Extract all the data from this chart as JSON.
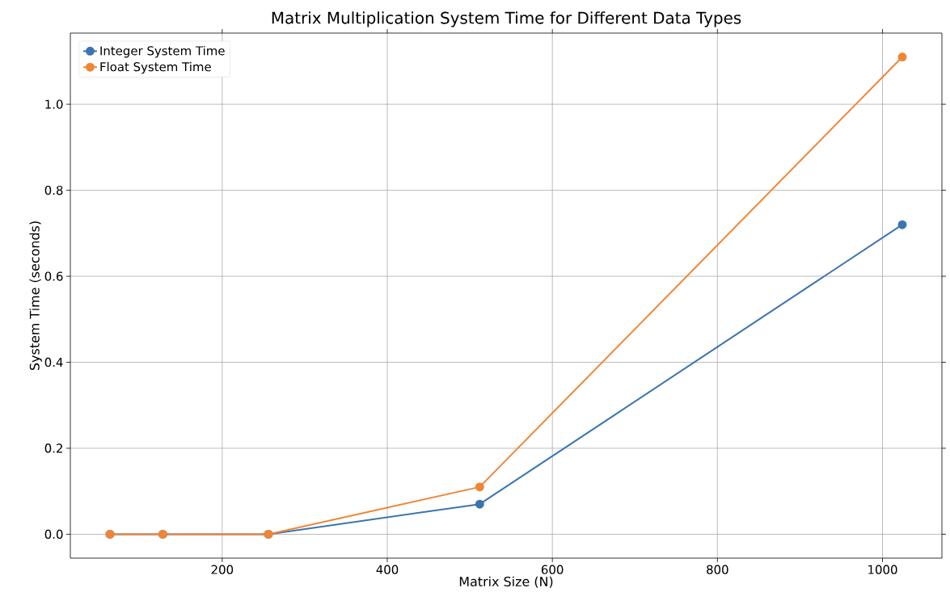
{
  "chart_data": {
    "type": "line",
    "title": "Matrix Multiplication System Time for Different Data Types",
    "xlabel": "Matrix Size (N)",
    "ylabel": "System Time (seconds)",
    "x": [
      64,
      128,
      256,
      512,
      1024
    ],
    "series": [
      {
        "name": "Integer System Time",
        "color": "#3b75af",
        "values": [
          0,
          0,
          0,
          0.07,
          0.72
        ]
      },
      {
        "name": "Float System Time",
        "color": "#ef8636",
        "values": [
          0,
          0,
          0,
          0.11,
          1.11
        ]
      }
    ],
    "xlim": [
      16,
      1072
    ],
    "ylim": [
      -0.0555,
      1.1655
    ],
    "xticks": [
      200,
      400,
      600,
      800,
      1000
    ],
    "yticks": [
      {
        "value": 0,
        "label": "0.0"
      },
      0.2,
      0.4,
      0.6,
      0.8,
      {
        "value": 1,
        "label": "1.0"
      }
    ],
    "grid": true,
    "legend": "top left",
    "marker": "circle",
    "line_style": "solid"
  }
}
